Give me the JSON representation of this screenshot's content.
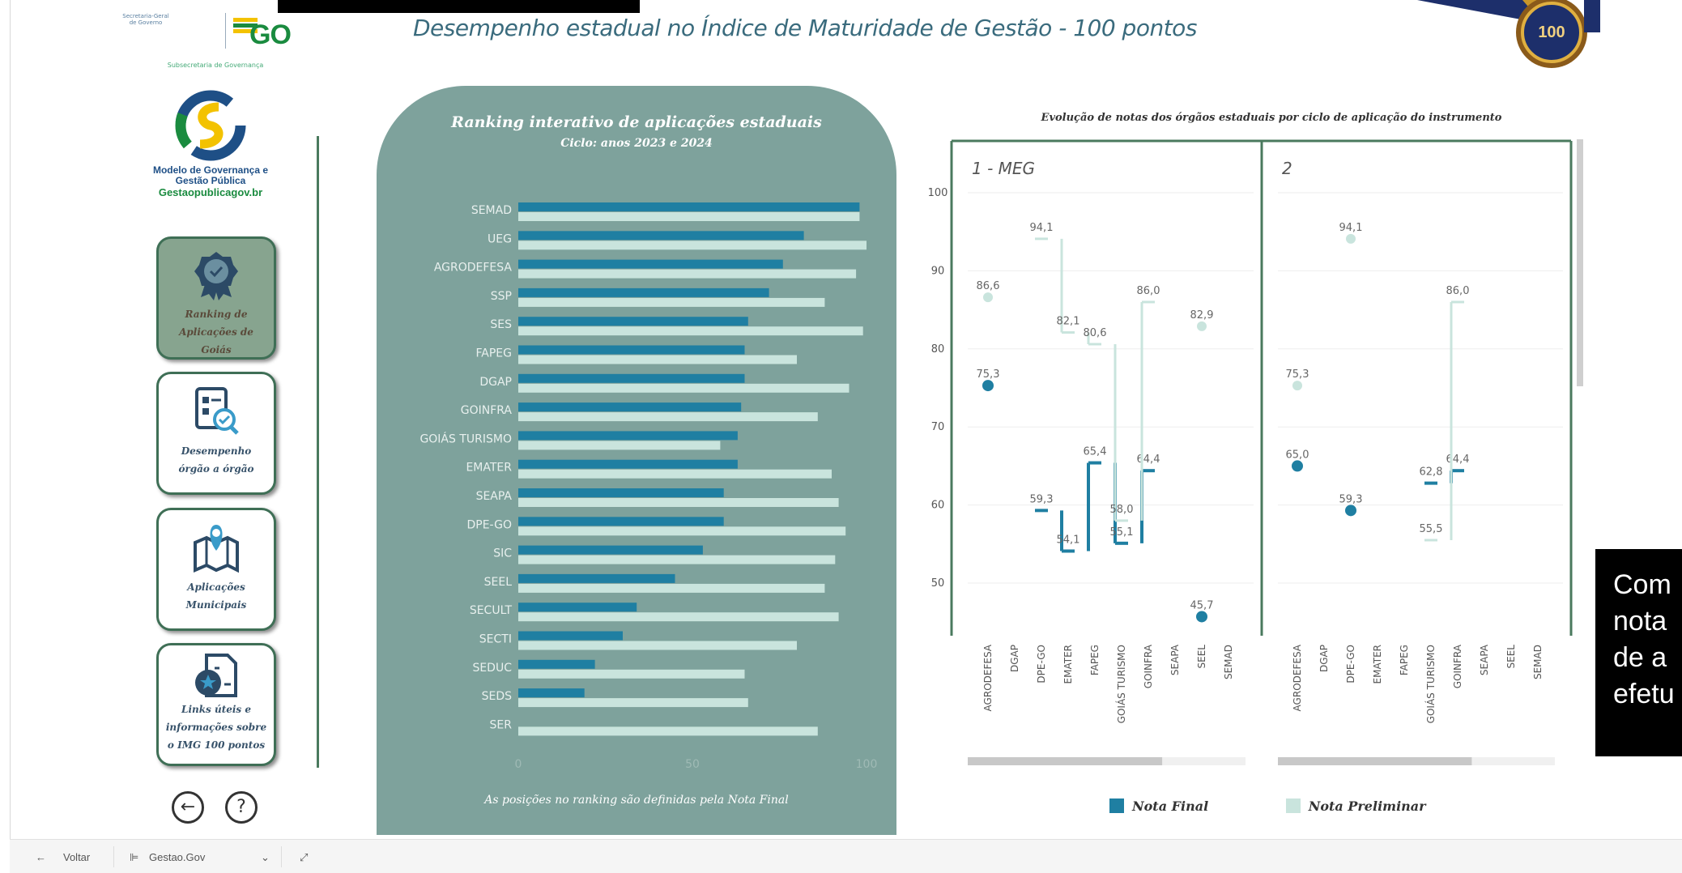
{
  "header": {
    "title": "Desempenho estadual no Índice de Maturidade de Gestão - 100 pontos",
    "gov_secretaria": "Secretaria-Geral de Governo",
    "gov_brand": "GO",
    "gov_subsecretaria": "Subsecretaria de Governança",
    "badge_text": "100"
  },
  "sidebar": {
    "logo_line1": "Modelo de Governança e",
    "logo_line2": "Gestão Pública",
    "logo_site": "Gestaopublicagov.br",
    "items": [
      {
        "label1": "Ranking de",
        "label2": "Aplicações de",
        "label3": "Goiás",
        "icon": "award-ribbon-icon",
        "active": true
      },
      {
        "label1": "Desempenho",
        "label2": "órgão a órgão",
        "label3": "",
        "icon": "report-search-icon",
        "active": false
      },
      {
        "label1": "Aplicações",
        "label2": "Municipais",
        "label3": "",
        "icon": "map-pin-icon",
        "active": false
      },
      {
        "label1": "Links úteis e",
        "label2": "informações sobre",
        "label3": "o IMG 100 pontos",
        "icon": "document-star-icon",
        "active": false
      }
    ],
    "back_glyph": "←",
    "help_glyph": "?"
  },
  "ranking": {
    "title": "Ranking interativo de aplicações estaduais",
    "subtitle": "Ciclo: anos 2023 e 2024",
    "footnote": "As posições no ranking são definidas pela Nota Final"
  },
  "evolution": {
    "title": "Evolução de notas dos órgãos estaduais por ciclo de aplicação do instrumento",
    "legend_final": "Nota Final",
    "legend_preliminar": "Nota Preliminar"
  },
  "callout": {
    "lines": [
      "Com",
      "nota",
      "de a",
      "efetu"
    ]
  },
  "bottombar": {
    "back": "Voltar",
    "page": "Gestao.Gov"
  },
  "colors": {
    "final": "#1f7fa2",
    "preliminar": "#c9e4dd",
    "panel": "#7ea29c",
    "nav_border": "#3f6f56"
  },
  "chart_data": [
    {
      "type": "bar",
      "title": "Ranking interativo de aplicações estaduais",
      "subtitle": "Ciclo: anos 2023 e 2024",
      "orientation": "horizontal",
      "categories": [
        "SEMAD",
        "UEG",
        "AGRODEFESA",
        "SSP",
        "SES",
        "FAPEG",
        "DGAP",
        "GOINFRA",
        "GOIÁS TURISMO",
        "EMATER",
        "SEAPA",
        "DPE-GO",
        "SIC",
        "SEEL",
        "SECULT",
        "SECTI",
        "SEDUC",
        "SEDS",
        "SER"
      ],
      "series": [
        {
          "name": "Nota Final",
          "values": [
            98,
            82,
            76,
            72,
            66,
            65,
            65,
            64,
            63,
            63,
            59,
            59,
            53,
            45,
            34,
            30,
            22,
            19,
            0
          ]
        },
        {
          "name": "Nota Preliminar",
          "values": [
            98,
            100,
            97,
            88,
            99,
            80,
            95,
            86,
            58,
            90,
            92,
            94,
            91,
            88,
            92,
            80,
            65,
            66,
            86
          ]
        }
      ],
      "xticks": [
        "0",
        "50",
        "100"
      ],
      "xlim": [
        0,
        100
      ],
      "footnote": "As posições no ranking são definidas pela Nota Final"
    },
    {
      "type": "line",
      "title": "Evolução de notas dos órgãos estaduais por ciclo de aplicação do instrumento",
      "ylim": [
        40,
        100
      ],
      "yticks": [
        "50",
        "60",
        "70",
        "80",
        "90",
        "100"
      ],
      "panels": [
        {
          "label": "1 - MEG",
          "categories": [
            "AGRODEFESA",
            "DGAP",
            "DPE-GO",
            "EMATER",
            "FAPEG",
            "GOIÁS TURISMO",
            "GOINFRA",
            "SEAPA",
            "SEEL",
            "SEMAD"
          ],
          "series": [
            {
              "name": "Nota Final",
              "values": [
                75.3,
                null,
                59.3,
                54.1,
                65.4,
                55.1,
                64.4,
                null,
                45.7,
                null
              ]
            },
            {
              "name": "Nota Preliminar",
              "values": [
                86.6,
                null,
                94.1,
                82.1,
                80.6,
                58.0,
                86.0,
                null,
                82.9,
                null
              ]
            }
          ]
        },
        {
          "label": "2",
          "categories": [
            "AGRODEFESA",
            "DGAP",
            "DPE-GO",
            "EMATER",
            "FAPEG",
            "GOIÁS TURISMO",
            "GOINFRA",
            "SEAPA",
            "SEEL",
            "SEMAD"
          ],
          "series": [
            {
              "name": "Nota Final",
              "values": [
                65.0,
                null,
                59.3,
                null,
                null,
                62.8,
                64.4,
                null,
                null,
                null
              ]
            },
            {
              "name": "Nota Preliminar",
              "values": [
                75.3,
                null,
                94.1,
                null,
                null,
                55.5,
                86.0,
                null,
                null,
                null
              ]
            }
          ]
        }
      ],
      "legend": [
        "Nota Final",
        "Nota Preliminar"
      ],
      "legend_position": "bottom"
    }
  ]
}
